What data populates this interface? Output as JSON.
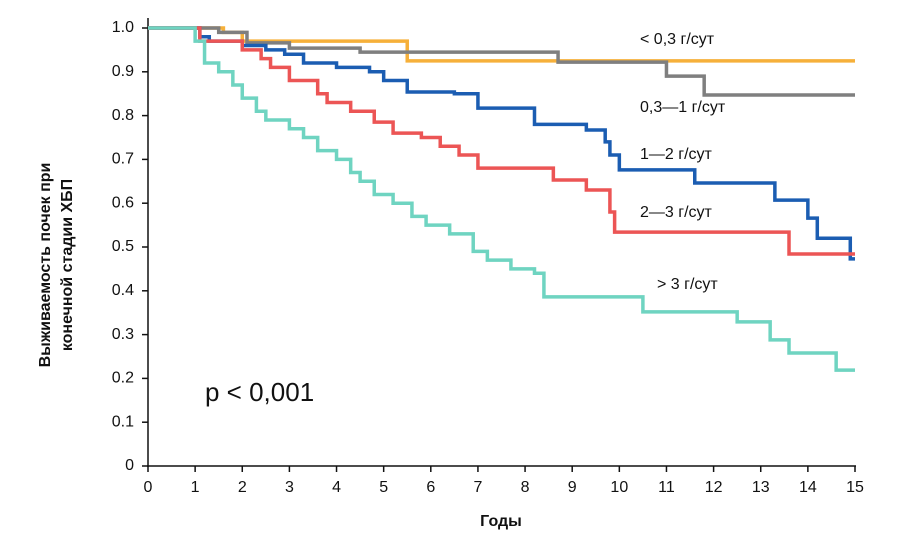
{
  "chart_data": {
    "type": "step",
    "ylabel": [
      "Выживаемость почек при",
      "конечной стадии ХБП"
    ],
    "xlabel": "Годы",
    "annotation": "p < 0,001",
    "xlim": [
      0,
      15
    ],
    "xticks": [
      0,
      1,
      2,
      3,
      4,
      5,
      6,
      7,
      8,
      9,
      10,
      11,
      12,
      13,
      14,
      15
    ],
    "ylim": [
      0,
      1
    ],
    "yticks": [
      0,
      0.1,
      0.2,
      0.3,
      0.4,
      0.5,
      0.6,
      0.7,
      0.8,
      0.9,
      {
        "value": 1,
        "label": "1.0"
      }
    ],
    "grid": false,
    "series": [
      {
        "name": "< 0,3 г/сут",
        "color": "#f6b03a",
        "x": [
          0,
          1.6,
          2.0,
          5.5,
          15
        ],
        "values": [
          1,
          0.99,
          0.97,
          0.925,
          0.925
        ]
      },
      {
        "name": "0,3—1 г/сут",
        "color": "#7f7f7f",
        "x": [
          0,
          1.5,
          2.1,
          3,
          4.5,
          8.7,
          11,
          11.8,
          15
        ],
        "values": [
          1,
          0.99,
          0.966,
          0.954,
          0.945,
          0.922,
          0.89,
          0.847,
          0.847
        ]
      },
      {
        "name": "1—2 г/сут",
        "color": "#1b5db2",
        "x": [
          0,
          1.1,
          1.3,
          2,
          2.5,
          2.9,
          3.3,
          4,
          4.7,
          5,
          5.5,
          6.5,
          7,
          8.2,
          9.3,
          9.7,
          9.8,
          10,
          11.6,
          13.3,
          14,
          14.2,
          14.9,
          15
        ],
        "values": [
          1,
          0.98,
          0.97,
          0.96,
          0.95,
          0.94,
          0.92,
          0.91,
          0.9,
          0.88,
          0.854,
          0.85,
          0.817,
          0.78,
          0.767,
          0.74,
          0.71,
          0.676,
          0.646,
          0.607,
          0.566,
          0.52,
          0.473,
          0.473
        ]
      },
      {
        "name": "2—3 г/сут",
        "color": "#ec5555",
        "x": [
          0,
          1.1,
          2,
          2.4,
          2.6,
          3,
          3.6,
          3.8,
          4.3,
          4.8,
          5.2,
          5.8,
          6.2,
          6.6,
          7,
          8.6,
          9.3,
          9.8,
          9.9,
          13.6,
          15
        ],
        "values": [
          1,
          0.97,
          0.95,
          0.93,
          0.91,
          0.88,
          0.85,
          0.83,
          0.81,
          0.785,
          0.76,
          0.75,
          0.73,
          0.71,
          0.68,
          0.653,
          0.63,
          0.58,
          0.534,
          0.484,
          0.484
        ]
      },
      {
        "name": "> 3 г/сут",
        "color": "#6fd4c1",
        "x": [
          0,
          1,
          1.2,
          1.5,
          1.8,
          2,
          2.3,
          2.5,
          3,
          3.3,
          3.6,
          4,
          4.3,
          4.5,
          4.8,
          5.2,
          5.6,
          5.9,
          6.4,
          6.9,
          7.2,
          7.7,
          8.2,
          8.4,
          10.5,
          12.5,
          13.2,
          13.6,
          14.6,
          15
        ],
        "values": [
          1,
          0.97,
          0.92,
          0.9,
          0.87,
          0.84,
          0.81,
          0.79,
          0.77,
          0.75,
          0.72,
          0.7,
          0.67,
          0.65,
          0.62,
          0.6,
          0.57,
          0.55,
          0.53,
          0.49,
          0.47,
          0.45,
          0.44,
          0.386,
          0.352,
          0.329,
          0.288,
          0.258,
          0.219,
          0.219
        ]
      }
    ]
  }
}
